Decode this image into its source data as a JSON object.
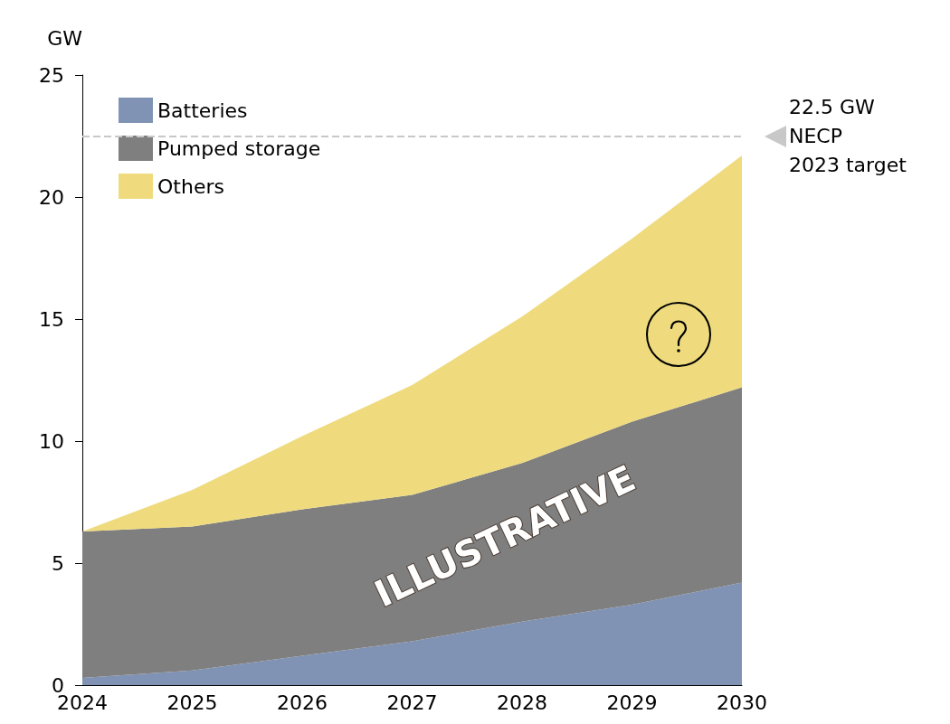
{
  "chart_data": {
    "type": "area",
    "stacked": true,
    "ylabel": "GW",
    "categories": [
      "2024",
      "2025",
      "2026",
      "2027",
      "2028",
      "2029",
      "2030"
    ],
    "series": [
      {
        "name": "Batteries",
        "color": "#8093b5",
        "values": [
          0.3,
          0.6,
          1.2,
          1.8,
          2.6,
          3.3,
          4.2
        ]
      },
      {
        "name": "Pumped storage",
        "color": "#7f7f7f",
        "values": [
          6.0,
          5.9,
          6.0,
          6.0,
          6.5,
          7.5,
          8.0
        ]
      },
      {
        "name": "Others",
        "color": "#efdb7d",
        "values": [
          0,
          1.5,
          3.0,
          4.5,
          6.0,
          7.5,
          9.5
        ]
      }
    ],
    "ylim": [
      0,
      25
    ],
    "yticks": [
      0,
      5,
      10,
      15,
      20,
      25
    ],
    "grid": false,
    "legend": "top left",
    "ref_lines": [
      {
        "axis": "y",
        "value": 22.5,
        "label": "22.5 GW\nNECP\n2023 target",
        "color": "#c8c8c8",
        "line_style": "dashed"
      }
    ],
    "annotations": [
      "ILLUSTRATIVE"
    ]
  }
}
